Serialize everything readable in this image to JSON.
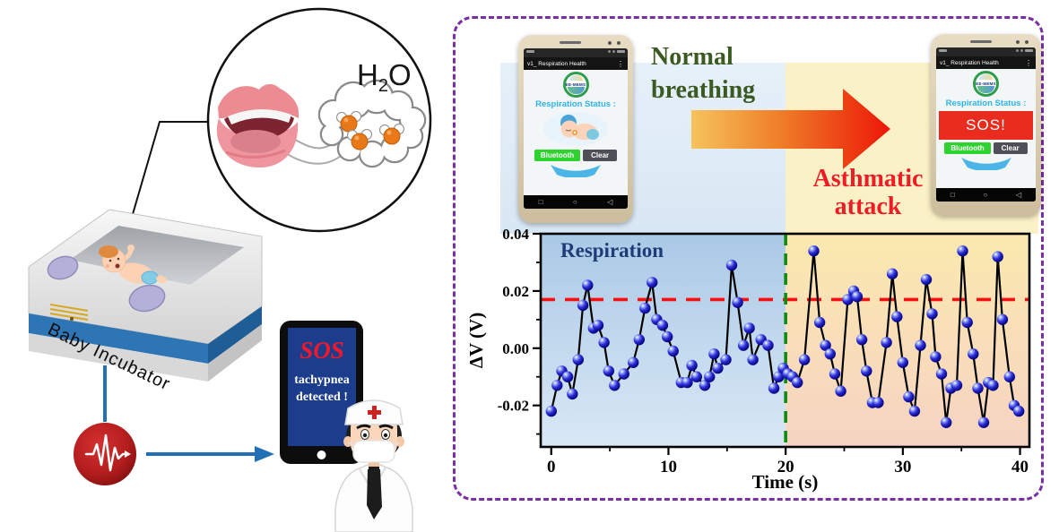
{
  "scene": {
    "h2o": {
      "pre": "H",
      "sub": "2",
      "post": "O"
    },
    "incubator_label": "Baby Incubator",
    "tablet": {
      "sos": "SOS",
      "line1": "tachypnea",
      "line2": "detected !"
    }
  },
  "panel": {
    "normal_line1": "Normal",
    "normal_line2": "breathing",
    "asthma_line1": "Asthmatic",
    "asthma_line2": "attack",
    "colors": {
      "border": "#7a2fa5",
      "normal_text": "#3b5a22",
      "asthma_text": "#ee1c25",
      "normal_bg": "#dcebf7",
      "asthma_bg": "#fbf1c6",
      "arrow_start": "#f6c35c",
      "arrow_end": "#ec1708"
    }
  },
  "phone": {
    "app_title": "v1_ Respiration Health",
    "menu_icon": "⋮",
    "logo_text": "EE-MEMS",
    "status_label": "Respiration Status :",
    "sos_banner": "SOS!",
    "bluetooth_button": "Bluetooth",
    "clear_button": "Clear",
    "nav": {
      "square": "□",
      "circle": "○",
      "triangle": "◁"
    }
  },
  "chart_data": {
    "type": "scatter",
    "annotation": "Respiration",
    "xlabel": "Time (s)",
    "ylabel": "ΔV (V)",
    "xlim": [
      -0.9,
      40.8
    ],
    "ylim": [
      -0.0345,
      0.04
    ],
    "xticks": [
      0,
      10,
      20,
      30,
      40
    ],
    "xminor": [
      5,
      15,
      25,
      35
    ],
    "yticks": [
      {
        "v": 0.04,
        "label": "0.04"
      },
      {
        "v": 0.02,
        "label": "0.02"
      },
      {
        "v": 0.0,
        "label": "0.00"
      },
      {
        "v": -0.02,
        "label": "-0.02"
      }
    ],
    "yminor": [
      0.03,
      0.01,
      -0.01,
      -0.03
    ],
    "threshold": {
      "y": 0.017,
      "color": "#f81010"
    },
    "divider": {
      "x": 20,
      "color": "#128a12"
    },
    "regions": [
      {
        "label": "Normal breathing",
        "from": -0.9,
        "to": 20,
        "fill_top": "#aac9e6",
        "fill_bottom": "#d9e8f5"
      },
      {
        "label": "Asthmatic attack",
        "from": 20,
        "to": 40.8,
        "fill_top": "#fbe9ae",
        "fill_bottom": "#f6d3c3"
      }
    ],
    "series": [
      {
        "name": "Respiration ΔV",
        "marker_color": "#2d2dd6",
        "line_color": "#000000",
        "points": [
          [
            0.0,
            -0.022
          ],
          [
            0.5,
            -0.013
          ],
          [
            0.9,
            -0.008
          ],
          [
            1.4,
            -0.01
          ],
          [
            1.8,
            -0.016
          ],
          [
            2.3,
            -0.004
          ],
          [
            2.7,
            0.015
          ],
          [
            3.1,
            0.022
          ],
          [
            3.6,
            0.007
          ],
          [
            4.0,
            0.008
          ],
          [
            4.5,
            0.002
          ],
          [
            4.9,
            -0.008
          ],
          [
            5.4,
            -0.013
          ],
          [
            6.2,
            -0.009
          ],
          [
            7.0,
            -0.005
          ],
          [
            7.5,
            0.003
          ],
          [
            8.0,
            0.014
          ],
          [
            8.6,
            0.023
          ],
          [
            9.0,
            0.01
          ],
          [
            9.5,
            0.008
          ],
          [
            9.9,
            0.004
          ],
          [
            10.4,
            -0.001
          ],
          [
            11.1,
            -0.012
          ],
          [
            11.6,
            -0.012
          ],
          [
            12.0,
            -0.006
          ],
          [
            12.4,
            -0.01
          ],
          [
            13.1,
            -0.013
          ],
          [
            13.5,
            -0.01
          ],
          [
            13.9,
            -0.002
          ],
          [
            14.2,
            -0.007
          ],
          [
            14.9,
            -0.004
          ],
          [
            15.4,
            0.029
          ],
          [
            15.9,
            0.016
          ],
          [
            16.4,
            0.001
          ],
          [
            16.9,
            0.007
          ],
          [
            17.2,
            -0.004
          ],
          [
            17.9,
            0.003
          ],
          [
            18.5,
            0.001
          ],
          [
            19.0,
            -0.014
          ],
          [
            19.4,
            -0.01
          ],
          [
            19.8,
            -0.007
          ],
          [
            20.2,
            -0.009
          ],
          [
            20.6,
            -0.01
          ],
          [
            21.0,
            -0.012
          ],
          [
            21.6,
            -0.004
          ],
          [
            22.4,
            0.034
          ],
          [
            22.9,
            0.009
          ],
          [
            23.4,
            0.001
          ],
          [
            23.8,
            -0.002
          ],
          [
            24.2,
            -0.009
          ],
          [
            24.7,
            -0.015
          ],
          [
            25.3,
            0.017
          ],
          [
            25.8,
            0.02
          ],
          [
            26.1,
            0.018
          ],
          [
            26.5,
            0.003
          ],
          [
            26.9,
            -0.008
          ],
          [
            27.4,
            -0.019
          ],
          [
            27.9,
            -0.019
          ],
          [
            28.6,
            0.002
          ],
          [
            29.1,
            0.026
          ],
          [
            29.5,
            0.011
          ],
          [
            30.0,
            -0.005
          ],
          [
            30.5,
            -0.017
          ],
          [
            31.0,
            -0.022
          ],
          [
            31.5,
            0.001
          ],
          [
            32.0,
            0.024
          ],
          [
            32.5,
            0.012
          ],
          [
            32.8,
            -0.003
          ],
          [
            33.3,
            -0.009
          ],
          [
            33.7,
            -0.026
          ],
          [
            34.1,
            -0.014
          ],
          [
            34.6,
            -0.013
          ],
          [
            35.1,
            0.034
          ],
          [
            35.5,
            0.009
          ],
          [
            36.0,
            -0.002
          ],
          [
            36.4,
            -0.014
          ],
          [
            36.9,
            -0.026
          ],
          [
            37.3,
            -0.012
          ],
          [
            37.7,
            -0.013
          ],
          [
            38.1,
            0.032
          ],
          [
            38.5,
            0.01
          ],
          [
            39.1,
            -0.01
          ],
          [
            39.5,
            -0.02
          ],
          [
            39.9,
            -0.022
          ]
        ]
      }
    ]
  }
}
